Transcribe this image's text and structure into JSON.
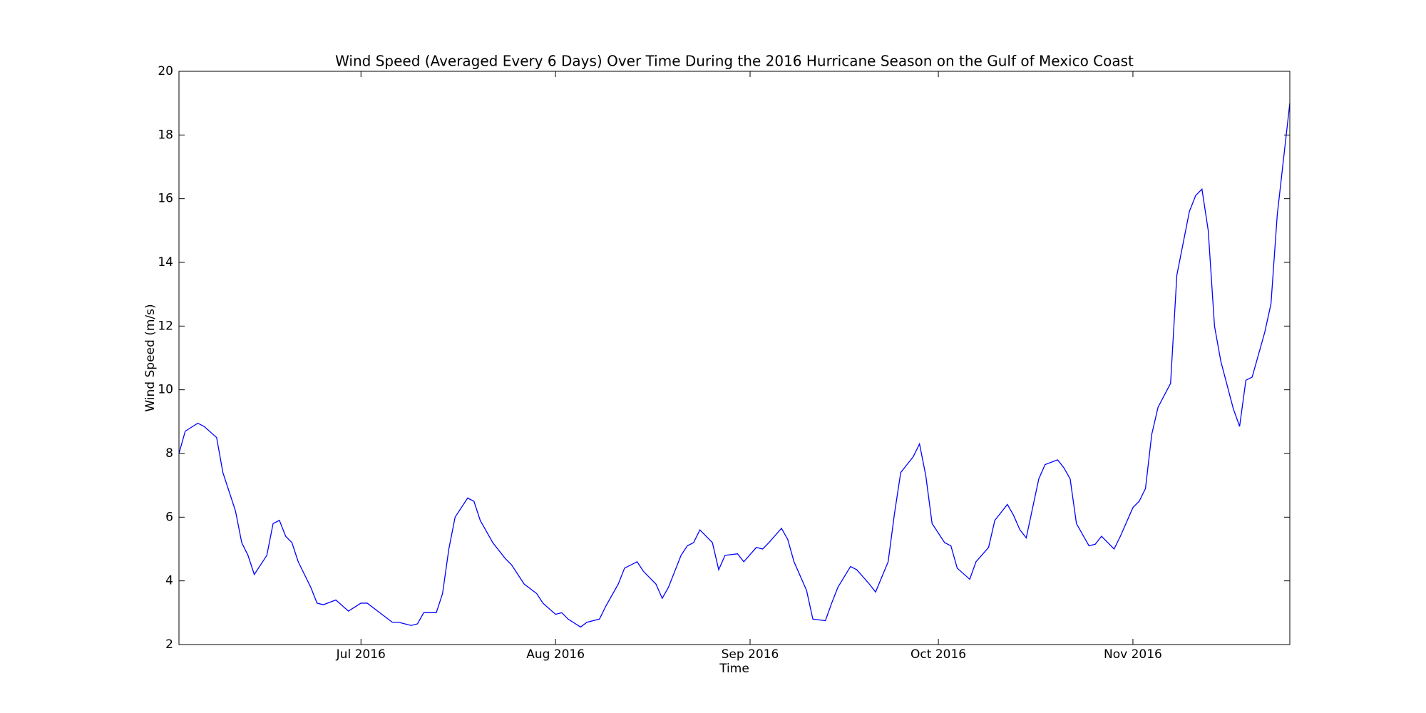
{
  "chart_data": {
    "type": "line",
    "title": "Wind Speed (Averaged Every 6 Days) Over Time During the 2016 Hurricane Season on the Gulf of Mexico Coast",
    "xlabel": "Time",
    "ylabel": "Wind Speed (m/s)",
    "x": [
      "2016-06-02",
      "2016-06-03",
      "2016-06-05",
      "2016-06-06",
      "2016-06-08",
      "2016-06-09",
      "2016-06-11",
      "2016-06-12",
      "2016-06-13",
      "2016-06-14",
      "2016-06-16",
      "2016-06-17",
      "2016-06-18",
      "2016-06-19",
      "2016-06-20",
      "2016-06-21",
      "2016-06-23",
      "2016-06-24",
      "2016-06-25",
      "2016-06-27",
      "2016-06-29",
      "2016-07-01",
      "2016-07-02",
      "2016-07-04",
      "2016-07-06",
      "2016-07-07",
      "2016-07-09",
      "2016-07-10",
      "2016-07-11",
      "2016-07-13",
      "2016-07-14",
      "2016-07-15",
      "2016-07-16",
      "2016-07-18",
      "2016-07-19",
      "2016-07-20",
      "2016-07-22",
      "2016-07-24",
      "2016-07-25",
      "2016-07-27",
      "2016-07-29",
      "2016-07-30",
      "2016-08-01",
      "2016-08-02",
      "2016-08-03",
      "2016-08-05",
      "2016-08-06",
      "2016-08-08",
      "2016-08-09",
      "2016-08-11",
      "2016-08-12",
      "2016-08-14",
      "2016-08-15",
      "2016-08-17",
      "2016-08-18",
      "2016-08-19",
      "2016-08-21",
      "2016-08-22",
      "2016-08-23",
      "2016-08-24",
      "2016-08-26",
      "2016-08-27",
      "2016-08-28",
      "2016-08-30",
      "2016-08-31",
      "2016-09-02",
      "2016-09-03",
      "2016-09-04",
      "2016-09-06",
      "2016-09-07",
      "2016-09-08",
      "2016-09-10",
      "2016-09-11",
      "2016-09-13",
      "2016-09-14",
      "2016-09-15",
      "2016-09-17",
      "2016-09-18",
      "2016-09-20",
      "2016-09-21",
      "2016-09-23",
      "2016-09-24",
      "2016-09-25",
      "2016-09-27",
      "2016-09-28",
      "2016-09-29",
      "2016-09-30",
      "2016-10-02",
      "2016-10-03",
      "2016-10-04",
      "2016-10-06",
      "2016-10-07",
      "2016-10-09",
      "2016-10-10",
      "2016-10-12",
      "2016-10-13",
      "2016-10-14",
      "2016-10-15",
      "2016-10-17",
      "2016-10-18",
      "2016-10-20",
      "2016-10-21",
      "2016-10-22",
      "2016-10-23",
      "2016-10-25",
      "2016-10-26",
      "2016-10-27",
      "2016-10-29",
      "2016-10-30",
      "2016-11-01",
      "2016-11-02",
      "2016-11-03",
      "2016-11-04",
      "2016-11-05",
      "2016-11-07",
      "2016-11-08",
      "2016-11-10",
      "2016-11-11",
      "2016-11-12",
      "2016-11-13",
      "2016-11-14",
      "2016-11-15",
      "2016-11-17",
      "2016-11-18",
      "2016-11-19",
      "2016-11-20",
      "2016-11-22",
      "2016-11-23",
      "2016-11-24",
      "2016-11-26"
    ],
    "series": [
      {
        "name": "Wind Speed",
        "color": "#0000ff",
        "values": [
          8.0,
          8.7,
          8.95,
          8.85,
          8.5,
          7.4,
          6.2,
          5.2,
          4.8,
          4.2,
          4.8,
          5.8,
          5.9,
          5.4,
          5.2,
          4.6,
          3.8,
          3.3,
          3.25,
          3.4,
          3.05,
          3.3,
          3.3,
          3.0,
          2.7,
          2.7,
          2.6,
          2.65,
          3.0,
          3.0,
          3.6,
          5.0,
          6.0,
          6.6,
          6.5,
          5.9,
          5.2,
          4.7,
          4.5,
          3.9,
          3.6,
          3.3,
          2.95,
          3.0,
          2.8,
          2.55,
          2.7,
          2.8,
          3.2,
          3.9,
          4.4,
          4.6,
          4.3,
          3.9,
          3.45,
          3.8,
          4.8,
          5.1,
          5.2,
          5.6,
          5.2,
          4.35,
          4.8,
          4.85,
          4.6,
          5.05,
          5.0,
          5.2,
          5.65,
          5.3,
          4.6,
          3.7,
          2.8,
          2.75,
          3.3,
          3.8,
          4.45,
          4.35,
          3.9,
          3.65,
          4.6,
          6.1,
          7.4,
          7.9,
          8.3,
          7.3,
          5.8,
          5.2,
          5.1,
          4.4,
          4.05,
          4.6,
          5.05,
          5.9,
          6.4,
          6.05,
          5.6,
          5.35,
          7.2,
          7.65,
          7.8,
          7.55,
          7.2,
          5.8,
          5.1,
          5.15,
          5.4,
          5.0,
          5.4,
          6.3,
          6.5,
          6.9,
          8.6,
          9.45,
          10.2,
          13.6,
          15.6,
          16.1,
          16.3,
          15.0,
          12.0,
          10.9,
          9.4,
          8.85,
          10.3,
          10.4,
          11.8,
          12.7,
          15.5,
          19.0
        ]
      }
    ],
    "xlim": [
      "2016-06-02",
      "2016-11-26"
    ],
    "xticks": [
      {
        "value": "2016-07-01",
        "label": "Jul 2016"
      },
      {
        "value": "2016-08-01",
        "label": "Aug 2016"
      },
      {
        "value": "2016-09-01",
        "label": "Sep 2016"
      },
      {
        "value": "2016-10-01",
        "label": "Oct 2016"
      },
      {
        "value": "2016-11-01",
        "label": "Nov 2016"
      }
    ],
    "ylim": [
      2,
      20
    ],
    "yticks": [
      2,
      4,
      6,
      8,
      10,
      12,
      14,
      16,
      18,
      20
    ],
    "grid": false
  }
}
